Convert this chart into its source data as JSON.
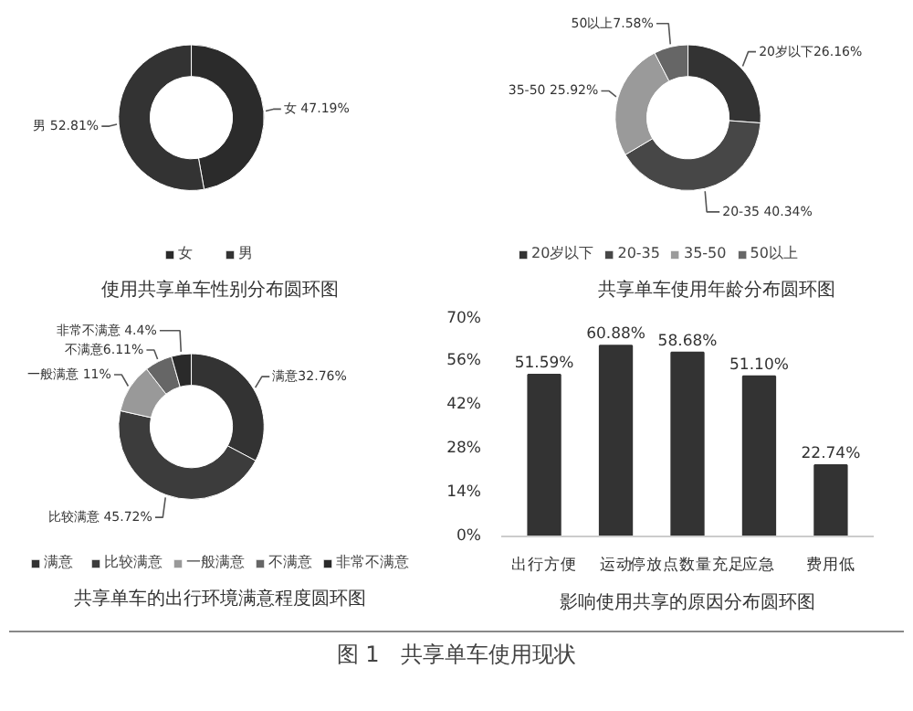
{
  "chart_data": [
    {
      "type": "donut",
      "title": "使用共享单车性别分布圆环图",
      "categories": [
        "女",
        "男"
      ],
      "values": [
        47.19,
        52.81
      ],
      "colors": [
        "#2b2b2b",
        "#333333"
      ],
      "value_labels": [
        "女 47.19%",
        "男 52.81%"
      ],
      "legend": "bottom"
    },
    {
      "type": "donut",
      "title": "共享单车使用年龄分布圆环图",
      "categories": [
        "20岁以下",
        "20-35",
        "35-50",
        "50以上"
      ],
      "values": [
        26.16,
        40.34,
        25.92,
        7.58
      ],
      "colors": [
        "#333333",
        "#474747",
        "#9a9a9a",
        "#666666"
      ],
      "value_labels": [
        "20岁以下26.16%",
        "20-35 40.34%",
        "35-50 25.92%",
        "50以上7.58%"
      ],
      "legend": "bottom"
    },
    {
      "type": "donut",
      "title": "共享单车的出行环境满意程度圆环图",
      "categories": [
        "满意",
        "比较满意",
        "一般满意",
        "不满意",
        "非常不满意"
      ],
      "values": [
        32.76,
        45.72,
        11,
        6.11,
        4.4
      ],
      "colors": [
        "#333333",
        "#3c3c3c",
        "#999999",
        "#666666",
        "#2a2a2a"
      ],
      "value_labels": [
        "满意32.76%",
        "比较满意 45.72%",
        "一般满意 11%",
        "不满意6.11%",
        "非常不满意 4.4%"
      ],
      "legend": "bottom"
    },
    {
      "type": "bar",
      "title": "影响使用共享的原因分布圆环图",
      "categories": [
        "出行方便",
        "运动",
        "停放点数量充足",
        "应急",
        "费用低"
      ],
      "values": [
        51.59,
        60.88,
        58.68,
        51.1,
        22.74
      ],
      "color": "#333333",
      "value_labels": [
        "51.59%",
        "60.88%",
        "58.68%",
        "51.10%",
        "22.74%"
      ],
      "ylim": [
        0,
        70
      ],
      "yticks": [
        {
          "value": 0,
          "label": "0%"
        },
        {
          "value": 14,
          "label": "14%"
        },
        {
          "value": 28,
          "label": "28%"
        },
        {
          "value": 42,
          "label": "42%"
        },
        {
          "value": 56,
          "label": "56%"
        },
        {
          "value": 70,
          "label": "70%"
        }
      ],
      "grid": false
    },
    {
      "type": "other",
      "title": "图 1　共享单车使用现状"
    }
  ]
}
